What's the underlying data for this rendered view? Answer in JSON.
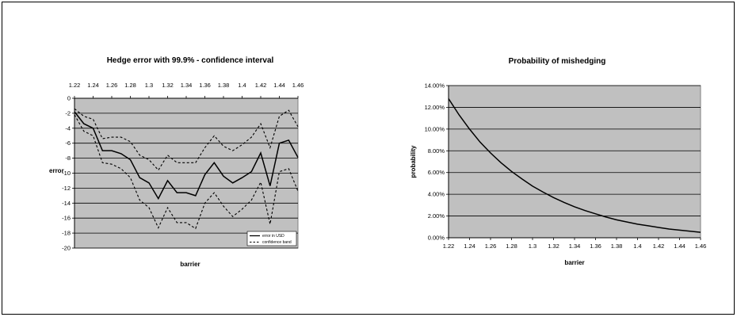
{
  "chart_data": [
    {
      "type": "line",
      "title": "Hedge error with 99.9% - confidence interval",
      "xlabel": "barrier",
      "ylabel": "error",
      "x": [
        1.22,
        1.23,
        1.24,
        1.25,
        1.26,
        1.27,
        1.28,
        1.29,
        1.3,
        1.31,
        1.32,
        1.33,
        1.34,
        1.35,
        1.36,
        1.37,
        1.38,
        1.39,
        1.4,
        1.41,
        1.42,
        1.43,
        1.44,
        1.45,
        1.46
      ],
      "xticks": [
        "1.22",
        "1.24",
        "1.26",
        "1.28",
        "1.3",
        "1.32",
        "1.34",
        "1.36",
        "1.38",
        "1.4",
        "1.42",
        "1.44",
        "1.46"
      ],
      "ylim": [
        -20,
        0
      ],
      "yticks": [
        "0",
        "-2",
        "-4",
        "-6",
        "-8",
        "-10",
        "-12",
        "-14",
        "-16",
        "-18",
        "-20"
      ],
      "x_axis_position": "top",
      "grid": true,
      "legend": "bottom-right",
      "series": [
        {
          "name": "error in USD",
          "style": "solid",
          "values": [
            -1.8,
            -3.4,
            -4.0,
            -7.0,
            -7.0,
            -7.4,
            -8.2,
            -10.6,
            -11.3,
            -13.4,
            -11.0,
            -12.6,
            -12.6,
            -13.0,
            -10.2,
            -8.6,
            -10.4,
            -11.3,
            -10.6,
            -9.8,
            -7.3,
            -11.7,
            -6.0,
            -5.6,
            -7.9
          ]
        },
        {
          "name": "confidence band",
          "style": "dashed",
          "values": [
            -1.4,
            -2.4,
            -2.8,
            -5.4,
            -5.2,
            -5.2,
            -5.8,
            -7.6,
            -8.2,
            -9.6,
            -7.6,
            -8.6,
            -8.6,
            -8.6,
            -6.6,
            -5.0,
            -6.4,
            -7.0,
            -6.2,
            -5.2,
            -3.4,
            -6.6,
            -2.4,
            -1.6,
            -3.8
          ]
        },
        {
          "name": "confidence band",
          "style": "dashed",
          "values": [
            -2.2,
            -4.4,
            -5.0,
            -8.6,
            -8.8,
            -9.4,
            -10.6,
            -13.6,
            -14.6,
            -17.3,
            -14.6,
            -16.6,
            -16.6,
            -17.4,
            -14.0,
            -12.6,
            -14.4,
            -15.8,
            -14.8,
            -13.6,
            -11.2,
            -16.8,
            -9.8,
            -9.4,
            -12.4
          ]
        }
      ]
    },
    {
      "type": "line",
      "title": "Probability of mishedging",
      "xlabel": "barrier",
      "ylabel": "probability",
      "x": [
        1.22,
        1.23,
        1.24,
        1.25,
        1.26,
        1.27,
        1.28,
        1.29,
        1.3,
        1.31,
        1.32,
        1.33,
        1.34,
        1.35,
        1.36,
        1.37,
        1.38,
        1.39,
        1.4,
        1.41,
        1.42,
        1.43,
        1.44,
        1.45,
        1.46
      ],
      "xticks": [
        "1.22",
        "1.24",
        "1.26",
        "1.28",
        "1.3",
        "1.32",
        "1.34",
        "1.36",
        "1.38",
        "1.4",
        "1.42",
        "1.44",
        "1.46"
      ],
      "ylim": [
        0,
        0.14
      ],
      "yticks": [
        "0.00%",
        "2.00%",
        "4.00%",
        "6.00%",
        "8.00%",
        "10.00%",
        "12.00%",
        "14.00%"
      ],
      "grid": true,
      "series": [
        {
          "style": "solid",
          "values": [
            0.128,
            0.113,
            0.1,
            0.088,
            0.078,
            0.069,
            0.061,
            0.054,
            0.0475,
            0.042,
            0.037,
            0.0325,
            0.0285,
            0.025,
            0.022,
            0.019,
            0.0165,
            0.0145,
            0.0125,
            0.011,
            0.0095,
            0.008,
            0.007,
            0.006,
            0.005
          ]
        }
      ]
    }
  ]
}
